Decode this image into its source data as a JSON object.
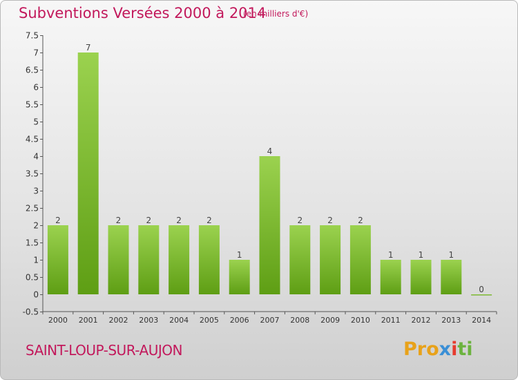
{
  "header": {
    "title": "Subventions Versées 2000 à 2014",
    "unit": "(en milliers d'€)"
  },
  "footer": {
    "commune": "SAINT-LOUP-SUR-AUJON",
    "logo": [
      "Pro",
      "x",
      "i",
      "ti"
    ]
  },
  "colors": {
    "title": "#c2185b",
    "bar_top": "#9bd24f",
    "bar_bottom": "#5e9e14",
    "logo": [
      "#e8a21a",
      "#3a8fd6",
      "#e63b2e",
      "#6cb33f"
    ]
  },
  "chart_data": {
    "type": "bar",
    "title": "Subventions Versées 2000 à 2014",
    "categories": [
      "2000",
      "2001",
      "2002",
      "2003",
      "2004",
      "2005",
      "2006",
      "2007",
      "2008",
      "2009",
      "2010",
      "2011",
      "2012",
      "2013",
      "2014"
    ],
    "values": [
      2,
      7,
      2,
      2,
      2,
      2,
      1,
      4,
      2,
      2,
      2,
      1,
      1,
      1,
      0
    ],
    "value_labels": [
      "2",
      "7",
      "2",
      "2",
      "2",
      "2",
      "1",
      "4",
      "2",
      "2",
      "2",
      "1",
      "1",
      "1",
      "0"
    ],
    "ylim": [
      -0.5,
      7.5
    ],
    "yticks": [
      -0.5,
      0,
      0.5,
      1,
      1.5,
      2,
      2.5,
      3,
      3.5,
      4,
      4.5,
      5,
      5.5,
      6,
      6.5,
      7,
      7.5
    ],
    "ytick_labels": [
      "-0.5",
      "0",
      "0.5",
      "1",
      "1.5",
      "2",
      "2.5",
      "3",
      "3.5",
      "4",
      "4.5",
      "5",
      "5.5",
      "6",
      "6.5",
      "7",
      "7.5"
    ],
    "grid": false,
    "legend": "none"
  }
}
